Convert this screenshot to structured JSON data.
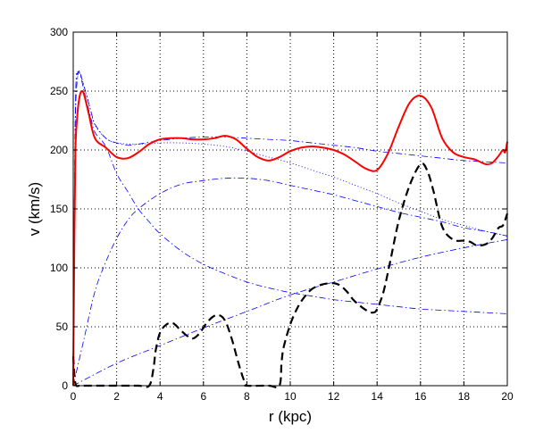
{
  "chart_data": {
    "type": "line",
    "title": "",
    "xlabel": "r (kpc)",
    "ylabel": "v (km/s)",
    "xlim": [
      0,
      20
    ],
    "ylim": [
      0,
      300
    ],
    "xticks": [
      0,
      2,
      4,
      6,
      8,
      10,
      12,
      14,
      16,
      18,
      20
    ],
    "yticks": [
      0,
      50,
      100,
      150,
      200,
      250,
      300
    ],
    "grid": true,
    "legend": "none",
    "series": [
      {
        "style": "dash-dot",
        "color": "#0000ff",
        "x": [
          0,
          0.05,
          0.1,
          0.2,
          0.3,
          0.5,
          0.8,
          1.0,
          1.5,
          2.0,
          2.5,
          3,
          3.5,
          4,
          5,
          6,
          7,
          8,
          9,
          10,
          11,
          12,
          13,
          14,
          15,
          16,
          17,
          18,
          19,
          20
        ],
        "y": [
          0,
          150,
          230,
          262,
          265,
          250,
          228,
          215,
          203,
          180,
          165,
          150,
          139,
          129,
          114,
          103,
          95,
          88,
          83,
          79,
          76,
          73,
          71,
          69,
          67,
          65,
          64,
          63,
          62,
          61
        ]
      },
      {
        "style": "dash-dot",
        "color": "#0000ff",
        "x": [
          0,
          0.5,
          1,
          1.5,
          2,
          2.5,
          3,
          4,
          5,
          6,
          7,
          8,
          9,
          10,
          11,
          12,
          13,
          14,
          15,
          16,
          17,
          18,
          19,
          20
        ],
        "y": [
          0,
          40,
          80,
          105,
          125,
          140,
          150,
          163,
          171,
          174,
          176,
          176,
          174,
          170,
          166,
          162,
          157,
          152,
          147,
          143,
          139,
          134,
          131,
          127
        ]
      },
      {
        "style": "dash-dot",
        "color": "#0000ff",
        "x": [
          0,
          2,
          4,
          6,
          8,
          10,
          12,
          14,
          16,
          18,
          20
        ],
        "y": [
          0,
          19,
          34,
          49,
          63,
          77,
          88,
          99,
          109,
          117,
          124
        ]
      },
      {
        "style": "dash-dot",
        "color": "#0000ff",
        "x": [
          0,
          0.1,
          0.2,
          0.3,
          0.5,
          0.8,
          1,
          1.5,
          2,
          2.5,
          3,
          4,
          5,
          6,
          7,
          8,
          9,
          10,
          11,
          12,
          13,
          14,
          15,
          16,
          17,
          18,
          19,
          20
        ],
        "y": [
          0,
          235,
          265,
          266,
          254,
          234,
          222,
          210,
          206,
          204,
          205,
          208,
          210,
          211,
          211,
          210,
          209,
          208,
          206,
          204,
          202,
          199,
          197,
          195,
          193,
          191,
          190,
          189
        ]
      },
      {
        "style": "dotted",
        "color": "#0000ff",
        "x": [
          0,
          0.1,
          0.2,
          0.3,
          0.5,
          0.8,
          1,
          1.5,
          2,
          3,
          4,
          5,
          6,
          7,
          8,
          9,
          10,
          11,
          12,
          13,
          14,
          15,
          16,
          17,
          18,
          19,
          20
        ],
        "y": [
          0,
          230,
          262,
          265,
          254,
          234,
          221,
          210,
          206,
          205,
          206,
          206,
          205,
          203,
          199,
          194,
          189,
          183,
          177,
          170,
          163,
          155,
          148,
          141,
          136,
          131,
          127
        ]
      },
      {
        "style": "solid",
        "color": "#ff0000",
        "x": [
          0,
          0.05,
          0.1,
          0.2,
          0.3,
          0.4,
          0.5,
          0.7,
          1,
          1.5,
          2,
          2.5,
          3,
          3.5,
          4,
          4.5,
          5,
          5.5,
          6,
          6.5,
          7,
          7.5,
          8,
          8.5,
          9,
          9.5,
          10,
          10.5,
          11,
          11.5,
          12,
          12.5,
          13,
          13.5,
          14,
          14.5,
          15,
          15.5,
          16,
          16.5,
          17,
          17.5,
          18,
          18.5,
          19,
          19.3,
          19.6,
          19.8,
          19.9,
          20
        ],
        "y": [
          0,
          120,
          200,
          232,
          246,
          250,
          247,
          232,
          210,
          202,
          194,
          193,
          198,
          205,
          209,
          210,
          210,
          209,
          209,
          210,
          212,
          209,
          201,
          194,
          191,
          194,
          199,
          202,
          203,
          202,
          200,
          196,
          190,
          184,
          183,
          197,
          220,
          240,
          246,
          236,
          210,
          198,
          194,
          192,
          188,
          189,
          195,
          200,
          198,
          207
        ]
      },
      {
        "style": "dashed",
        "color": "#000000",
        "x": [
          0,
          0.1,
          0.3,
          0.5,
          1,
          2,
          3,
          3.5,
          3.7,
          3.8,
          4,
          4.3,
          4.6,
          4.9,
          5.2,
          5.5,
          5.8,
          6.1,
          6.4,
          6.7,
          7,
          7.3,
          7.6,
          7.8,
          7.95,
          8,
          9,
          9.5,
          9.6,
          9.7,
          10,
          10.3,
          10.6,
          11,
          11.5,
          12,
          12.3,
          12.6,
          12.9,
          13.2,
          13.5,
          13.8,
          14,
          14.3,
          14.6,
          15,
          15.5,
          16,
          16.3,
          16.6,
          17,
          17.5,
          18,
          18.3,
          18.6,
          19,
          19.3,
          19.6,
          19.8,
          20
        ],
        "y": [
          25,
          2,
          0,
          0,
          0,
          0,
          0,
          0,
          15,
          30,
          45,
          52,
          53,
          48,
          43,
          40,
          44,
          52,
          58,
          60,
          55,
          40,
          20,
          8,
          1,
          0,
          0,
          0,
          20,
          33,
          52,
          65,
          74,
          82,
          86,
          87,
          85,
          80,
          73,
          68,
          64,
          62,
          65,
          80,
          105,
          140,
          170,
          188,
          183,
          165,
          135,
          124,
          123,
          122,
          119,
          120,
          125,
          134,
          136,
          146
        ]
      }
    ]
  }
}
